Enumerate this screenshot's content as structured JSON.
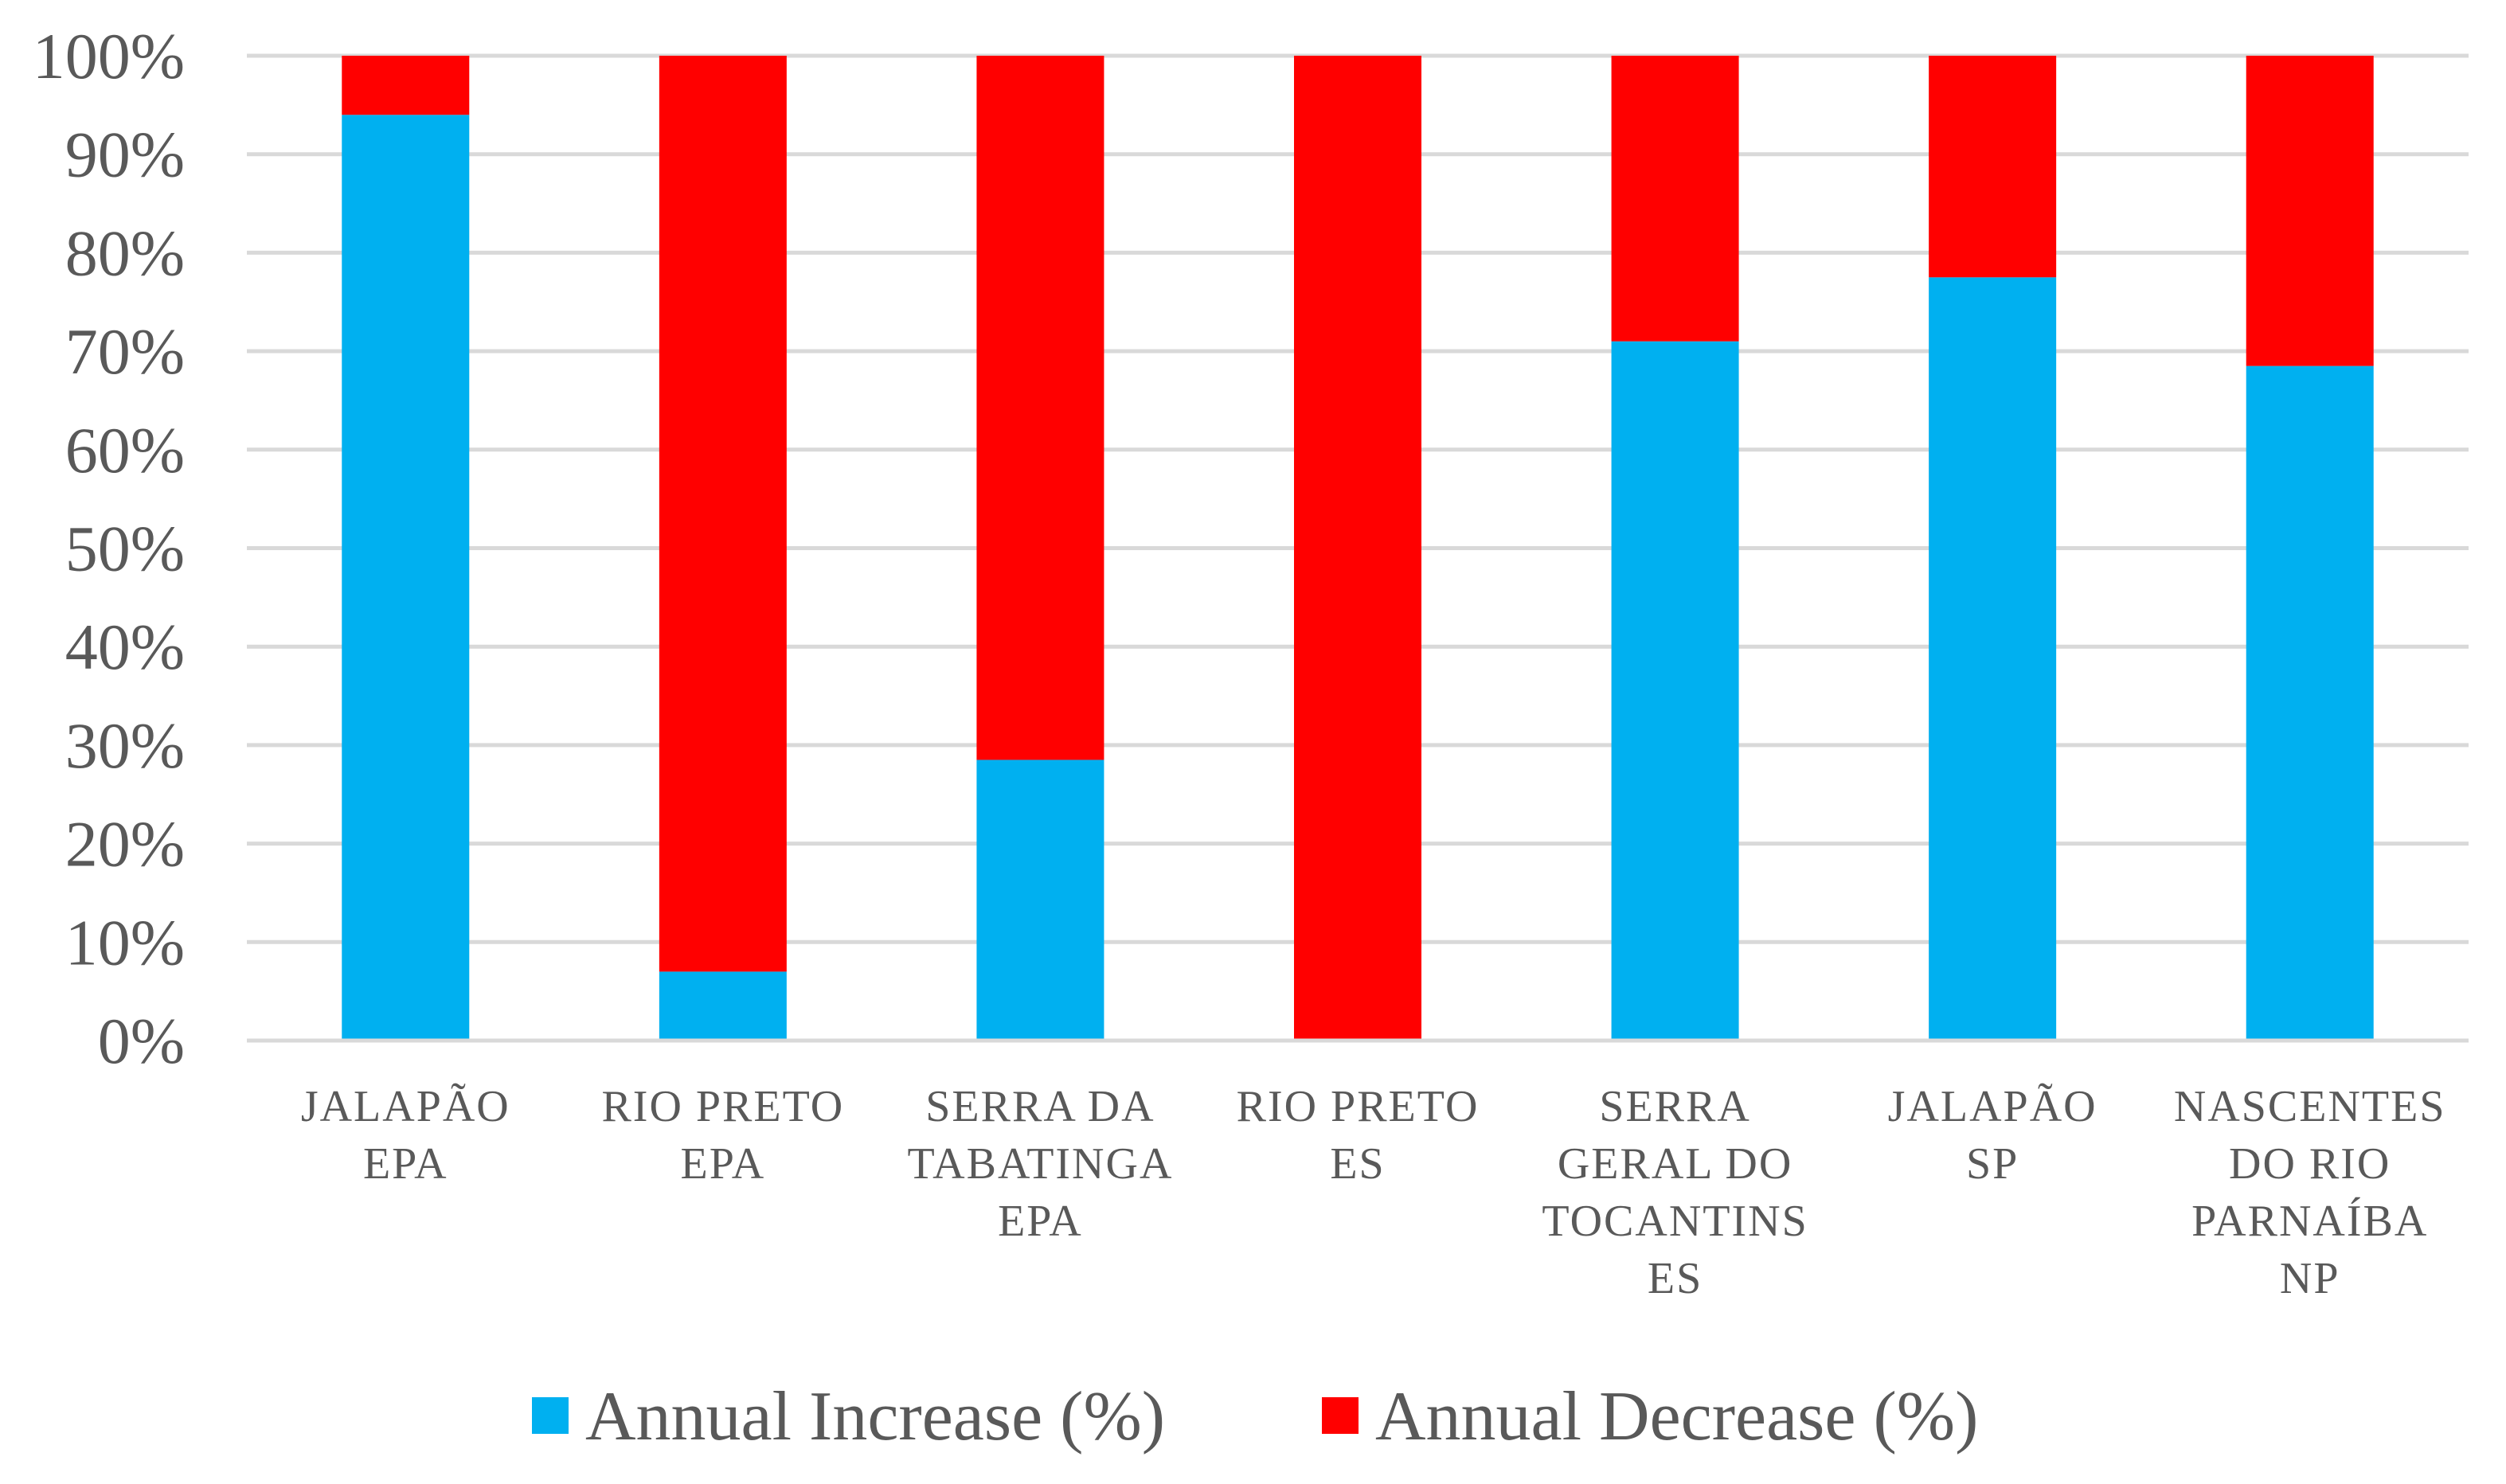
{
  "chart_data": {
    "type": "bar",
    "stacked": true,
    "title": "",
    "xlabel": "",
    "ylabel": "",
    "ylim": [
      0,
      100
    ],
    "y_ticks": [
      "0%",
      "10%",
      "20%",
      "30%",
      "40%",
      "50%",
      "60%",
      "70%",
      "80%",
      "90%",
      "100%"
    ],
    "grid": true,
    "legend_position": "bottom",
    "categories": [
      [
        "JALAPÃO",
        "EPA"
      ],
      [
        "RIO PRETO",
        "EPA"
      ],
      [
        "SERRA DA",
        "TABATINGA",
        "EPA"
      ],
      [
        "RIO PRETO",
        "ES"
      ],
      [
        "SERRA",
        "GERAL DO",
        "TOCANTINS",
        "ES"
      ],
      [
        "JALAPÃO",
        "SP"
      ],
      [
        "NASCENTES",
        "DO RIO",
        "PARNAÍBA",
        "NP"
      ]
    ],
    "series": [
      {
        "name": "Annual Increase (%)",
        "color": "#00B0F0",
        "values": [
          94,
          7,
          28.5,
          0,
          71,
          77.5,
          68.5
        ]
      },
      {
        "name": "Annual Decrease (%)",
        "color": "#FF0000",
        "values": [
          6,
          93,
          71.5,
          100,
          29,
          22.5,
          31.5
        ]
      }
    ]
  },
  "colors": {
    "gridline": "#D9D9D9",
    "axis_text": "#595959",
    "baseline": "#D9D9D9"
  }
}
